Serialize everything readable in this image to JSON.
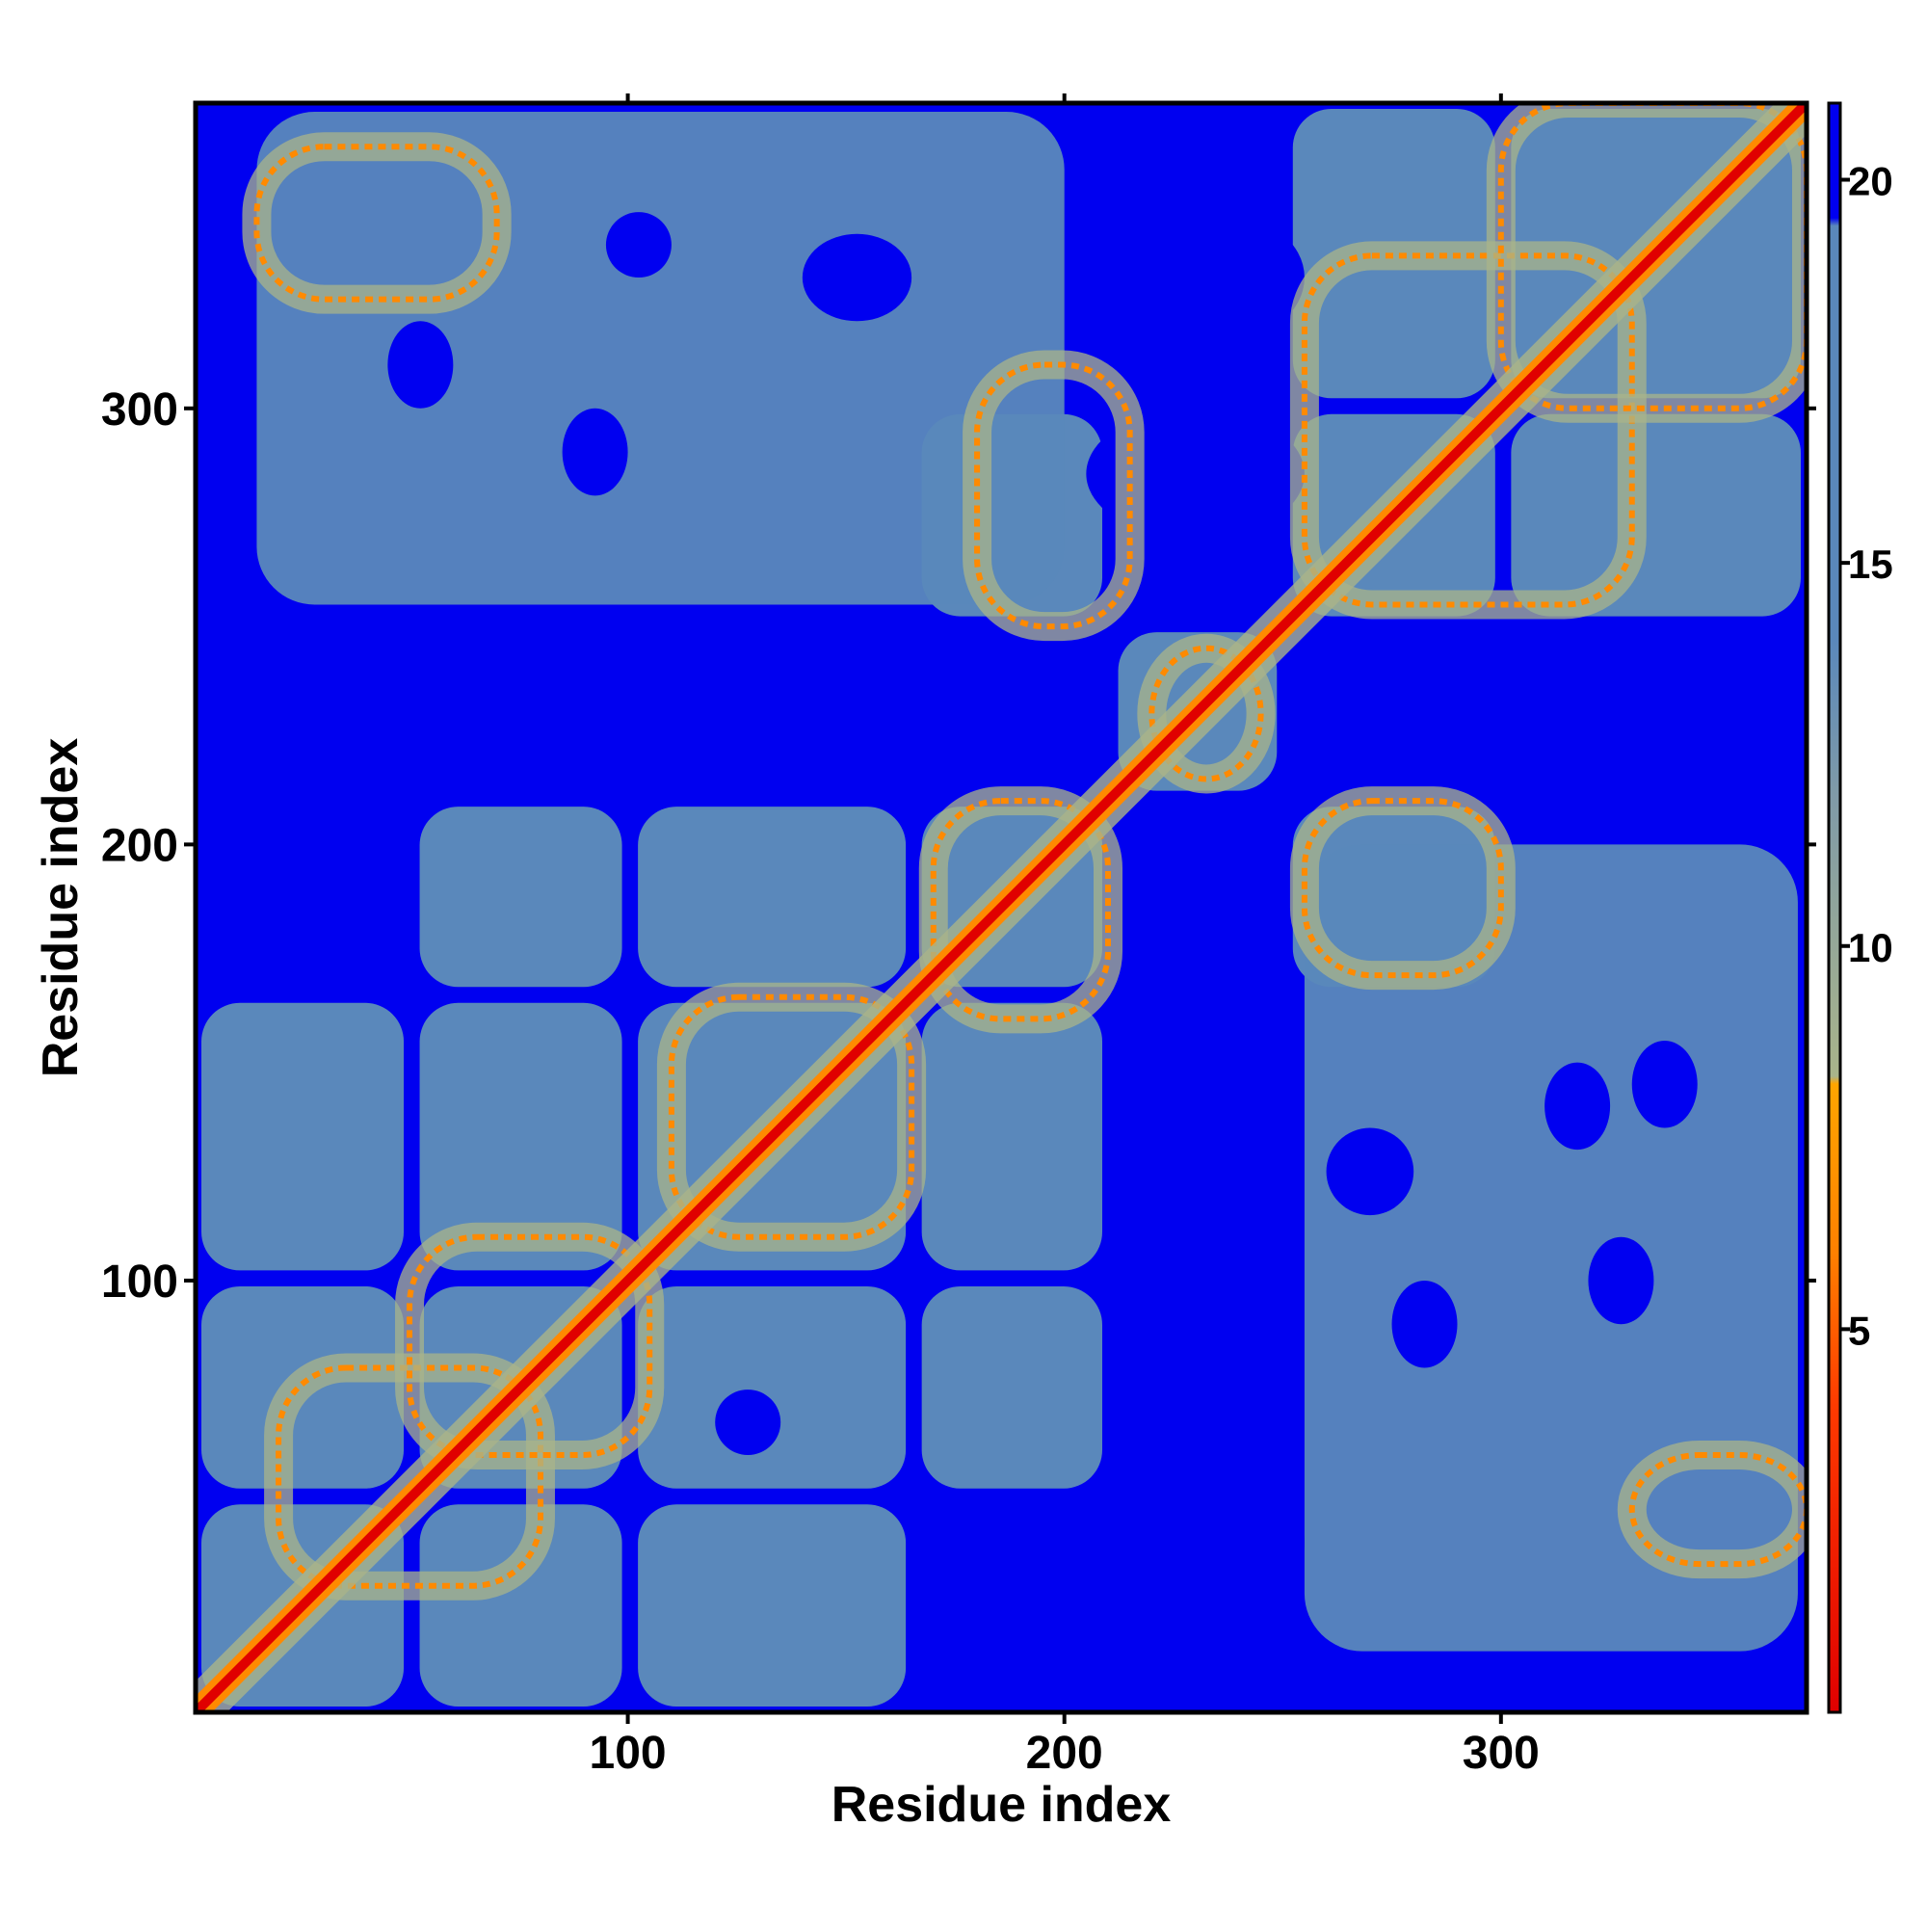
{
  "chart_data": {
    "type": "heatmap",
    "title": "",
    "xlabel": "Residue index",
    "ylabel": "Residue index",
    "xlim": [
      1,
      370
    ],
    "ylim": [
      1,
      370
    ],
    "x_ticks": [
      {
        "value": 100,
        "label": "100"
      },
      {
        "value": 200,
        "label": "200"
      },
      {
        "value": 300,
        "label": "300"
      }
    ],
    "y_ticks": [
      {
        "value": 100,
        "label": "100"
      },
      {
        "value": 200,
        "label": "200"
      },
      {
        "value": 300,
        "label": "300"
      }
    ],
    "colorbar": {
      "range": [
        0,
        21
      ],
      "ticks": [
        {
          "value": 5,
          "label": "5"
        },
        {
          "value": 10,
          "label": "10"
        },
        {
          "value": 15,
          "label": "15"
        },
        {
          "value": 20,
          "label": "20"
        }
      ],
      "stops": [
        {
          "value": 0,
          "color": "#e00000"
        },
        {
          "value": 4,
          "color": "#ff3a00"
        },
        {
          "value": 6,
          "color": "#ff8000"
        },
        {
          "value": 8.2,
          "color": "#ffa500"
        },
        {
          "value": 8.3,
          "color": "#a9b48a"
        },
        {
          "value": 12,
          "color": "#7f9aa8"
        },
        {
          "value": 14,
          "color": "#5a88bb"
        },
        {
          "value": 19.4,
          "color": "#5a88bb"
        },
        {
          "value": 19.5,
          "color": "#0000f0"
        },
        {
          "value": 21,
          "color": "#0000f0"
        }
      ]
    },
    "colors": {
      "far": "#0000f0",
      "mid": "#5a88bb",
      "near": "#a9b48a",
      "contact": "#ff8a00",
      "diagonal": "#e00000"
    },
    "domains": [
      [
        1,
        50
      ],
      [
        51,
        100
      ],
      [
        101,
        165
      ],
      [
        166,
        210
      ],
      [
        211,
        250
      ],
      [
        251,
        300
      ],
      [
        301,
        370
      ]
    ],
    "contact_bands": [
      {
        "x": [
          20,
          80
        ],
        "y": [
          30,
          80
        ]
      },
      {
        "x": [
          50,
          105
        ],
        "y": [
          60,
          110
        ]
      },
      {
        "x": [
          110,
          165
        ],
        "y": [
          110,
          165
        ]
      },
      {
        "x": [
          170,
          210
        ],
        "y": [
          160,
          210
        ]
      },
      {
        "x": [
          220,
          245
        ],
        "y": [
          215,
          245
        ]
      },
      {
        "x": [
          255,
          330
        ],
        "y": [
          255,
          335
        ]
      },
      {
        "x": [
          300,
          370
        ],
        "y": [
          300,
          370
        ]
      },
      {
        "x": [
          180,
          215
        ],
        "y": [
          250,
          310
        ]
      },
      {
        "x": [
          255,
          300
        ],
        "y": [
          170,
          210
        ]
      },
      {
        "x": [
          15,
          70
        ],
        "y": [
          325,
          360
        ]
      },
      {
        "x": [
          330,
          370
        ],
        "y": [
          35,
          60
        ]
      }
    ]
  }
}
